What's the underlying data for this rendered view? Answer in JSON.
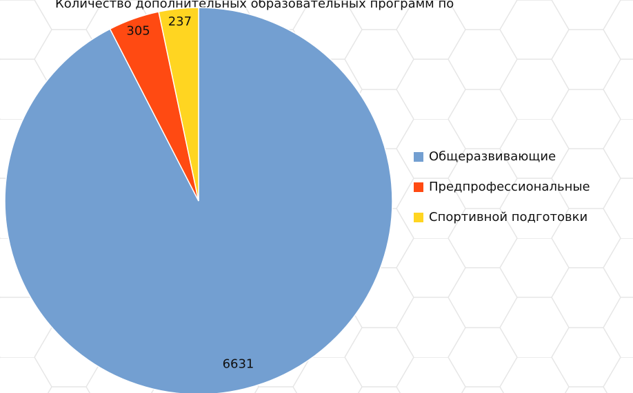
{
  "chart_data": {
    "type": "pie",
    "title": "Количество дополнительных образовательных программ по",
    "categories": [
      "Общеразвивающие",
      "Предпрофессиональные",
      "Спортивной подготовки"
    ],
    "values": [
      6631,
      305,
      237
    ],
    "colors": [
      "#739fd1",
      "#ff4a12",
      "#ffd521"
    ],
    "legend": "right"
  }
}
